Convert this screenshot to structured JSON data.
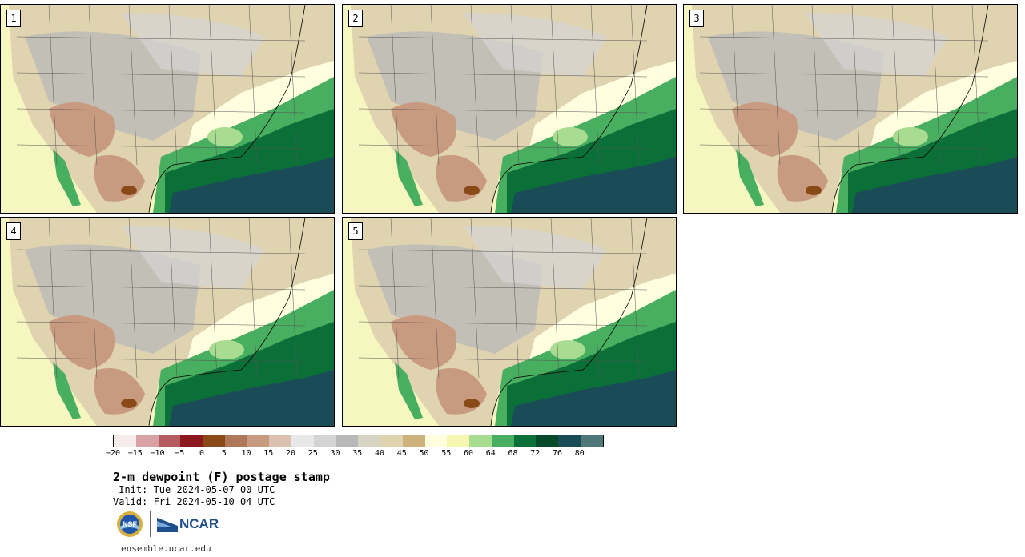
{
  "panels": [
    {
      "label": "1"
    },
    {
      "label": "2"
    },
    {
      "label": "3"
    },
    {
      "label": "4"
    },
    {
      "label": "5"
    }
  ],
  "colorbar": {
    "colors": [
      "#f6eaea",
      "#d8a2a4",
      "#b65c60",
      "#8c1820",
      "#8a4a18",
      "#b0785a",
      "#c89a80",
      "#dcc0b0",
      "#e8e8e8",
      "#d4d4d4",
      "#b8b8b8",
      "#d8d4c4",
      "#e0d4b0",
      "#cdb27c",
      "#ffffe0",
      "#f6f6b0",
      "#a8dc90",
      "#48ae60",
      "#0a7038",
      "#084a28",
      "#1a4c58",
      "#507878"
    ],
    "ticks": [
      "−20",
      "−15",
      "−10",
      "−5",
      "0",
      "5",
      "10",
      "15",
      "20",
      "25",
      "30",
      "35",
      "40",
      "45",
      "50",
      "55",
      "60",
      "64",
      "68",
      "72",
      "76",
      "80"
    ]
  },
  "title": "2-m dewpoint (F) postage stamp",
  "init": " Init: Tue 2024-05-07 00 UTC",
  "valid": "Valid: Fri 2024-05-10 04 UTC",
  "logos": {
    "nsf": "NSF",
    "ncar": "NCAR"
  },
  "url": "ensemble.ucar.edu"
}
